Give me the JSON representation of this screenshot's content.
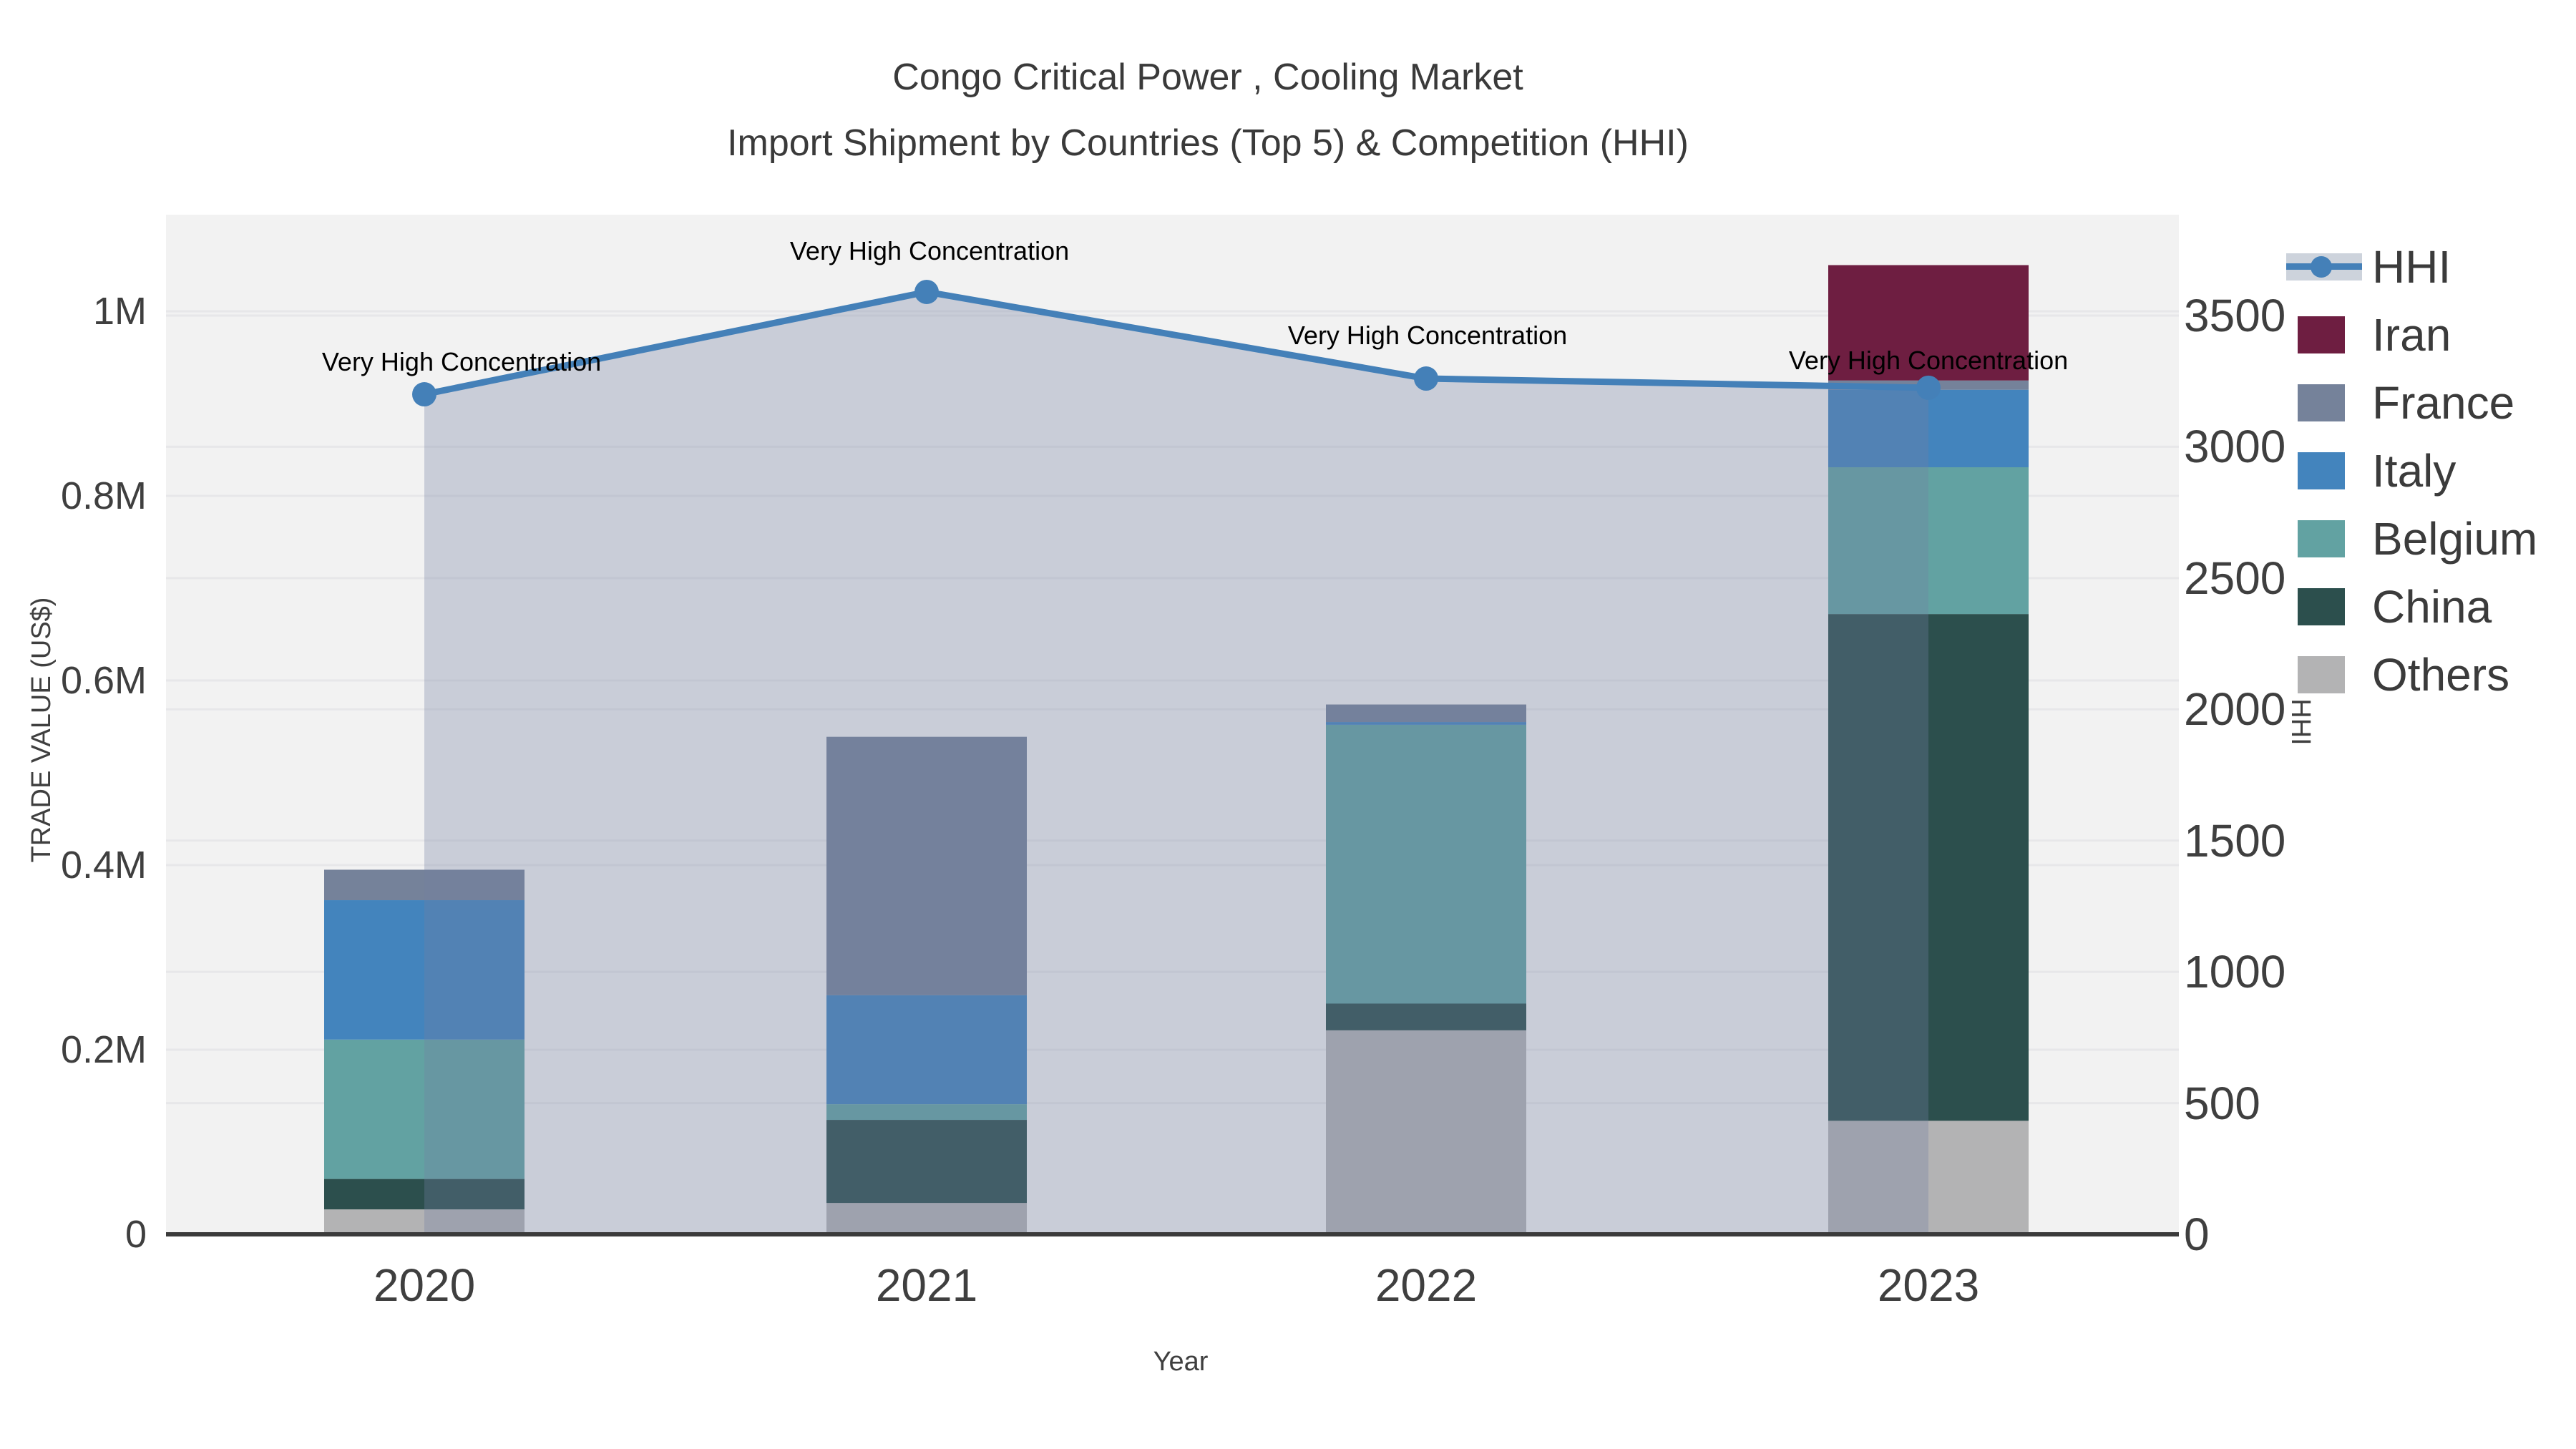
{
  "title": {
    "line1": "Congo Critical Power , Cooling Market",
    "line2": "Import Shipment by Countries (Top 5) & Competition (HHI)"
  },
  "axes": {
    "x": {
      "title": "Year",
      "ticks": [
        "2020",
        "2021",
        "2022",
        "2023"
      ]
    },
    "y_left": {
      "title": "TRADE VALUE (US$)",
      "ticks": [
        "0",
        "0.2M",
        "0.4M",
        "0.6M",
        "0.8M",
        "1M"
      ]
    },
    "y_right": {
      "title": "HHI",
      "ticks": [
        "0",
        "500",
        "1000",
        "1500",
        "2000",
        "2500",
        "3000",
        "3500"
      ]
    }
  },
  "legend": {
    "items": [
      {
        "label": "HHI",
        "type": "line",
        "color": "#4480B8"
      },
      {
        "label": "Iran",
        "type": "swatch",
        "color": "#6E1E41"
      },
      {
        "label": "France",
        "type": "swatch",
        "color": "#75829A"
      },
      {
        "label": "Italy",
        "type": "swatch",
        "color": "#4384BD"
      },
      {
        "label": "Belgium",
        "type": "swatch",
        "color": "#62A2A2"
      },
      {
        "label": "China",
        "type": "swatch",
        "color": "#2C4F4D"
      },
      {
        "label": "Others",
        "type": "swatch",
        "color": "#B3B3B4"
      }
    ]
  },
  "annotations": [
    {
      "text": "Very High Concentration"
    },
    {
      "text": "Very High Concentration"
    },
    {
      "text": "Very High Concentration"
    },
    {
      "text": "Very High Concentration"
    }
  ],
  "colors": {
    "plot_background": "#F2F2F2",
    "gridline": "#E7E7E9",
    "axis_line": "#3B3B3B",
    "tick_text": "#3F3F3F",
    "hhi_line": "#4480B8",
    "hhi_area_overlay": "rgba(114,129,161,0.32)",
    "iran": "#6E1E41",
    "france": "#75829A",
    "italy": "#4384BD",
    "belgium": "#62A2A2",
    "china": "#2C4F4D",
    "others": "#B3B3B4"
  },
  "chart_data": {
    "type": "bar",
    "subtype": "stacked bars with HHI line on secondary axis",
    "categories": [
      "2020",
      "2021",
      "2022",
      "2023"
    ],
    "bar_value_unit": "US$",
    "series": [
      {
        "name": "Others",
        "color": "#B3B3B4",
        "values": [
          27000,
          34000,
          221000,
          123000
        ]
      },
      {
        "name": "China",
        "color": "#2C4F4D",
        "values": [
          33000,
          90000,
          29000,
          549000
        ]
      },
      {
        "name": "Belgium",
        "color": "#62A2A2",
        "values": [
          151000,
          17000,
          302000,
          159000
        ]
      },
      {
        "name": "Italy",
        "color": "#4384BD",
        "values": [
          151000,
          118000,
          3000,
          84000
        ]
      },
      {
        "name": "France",
        "color": "#75829A",
        "values": [
          33000,
          280000,
          19000,
          10000
        ]
      },
      {
        "name": "Iran",
        "color": "#6E1E41",
        "values": [
          0,
          0,
          0,
          125000
        ]
      }
    ],
    "stack_totals": [
      395000,
      539000,
      574000,
      1050000
    ],
    "line_series": {
      "name": "HHI",
      "color": "#4480B8",
      "values": [
        3200,
        3590,
        3260,
        3225
      ],
      "area_fill": "rgba(114,129,161,0.32)",
      "point_labels": [
        "Very High Concentration",
        "Very High Concentration",
        "Very High Concentration",
        "Very High Concentration"
      ]
    },
    "title": "Congo Critical Power , Cooling Market — Import Shipment by Countries (Top 5) & Competition (HHI)",
    "xlabel": "Year",
    "ylabel_left": "TRADE VALUE (US$)",
    "ylabel_right": "HHI",
    "ylim_left": [
      0,
      1105000
    ],
    "ylim_right": [
      0,
      3885
    ],
    "grid": true,
    "legend_position": "right"
  }
}
